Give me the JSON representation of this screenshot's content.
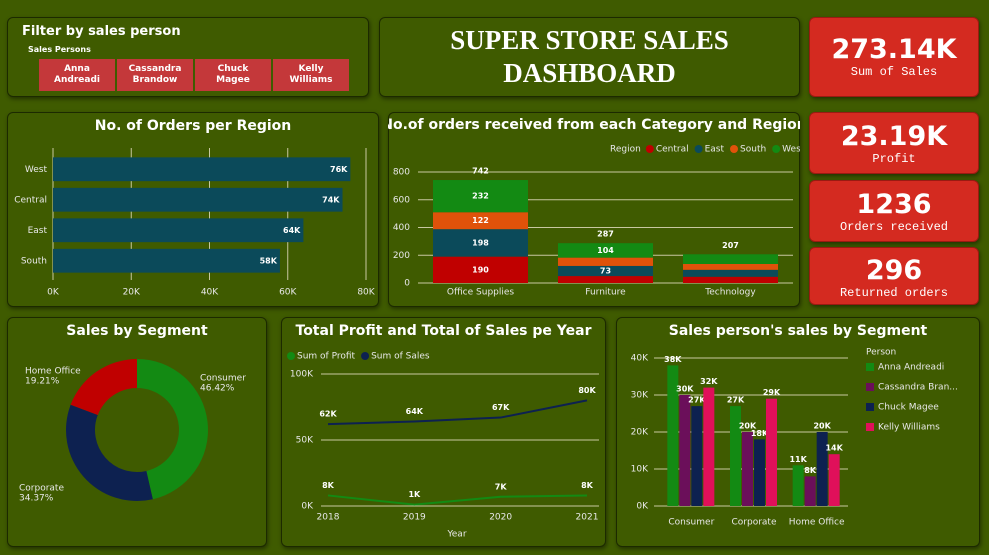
{
  "header": {
    "title": "SUPER STORE SALES DASHBOARD"
  },
  "filter": {
    "title": "Filter by sales person",
    "label": "Sales Persons",
    "options": [
      "Anna Andreadi",
      "Cassandra Brandow",
      "Chuck Magee",
      "Kelly Williams"
    ]
  },
  "kpis": [
    {
      "value": "273.14K",
      "label": "Sum of Sales"
    },
    {
      "value": "23.19K",
      "label": "Profit"
    },
    {
      "value": "1236",
      "label": "Orders received"
    },
    {
      "value": "296",
      "label": "Returned orders"
    }
  ],
  "chart_data": [
    {
      "type": "hbar",
      "title": "No. of Orders per  Region",
      "categories": [
        "West",
        "Central",
        "East",
        "South"
      ],
      "values": [
        76000,
        74000,
        64000,
        58000
      ],
      "value_labels": [
        "76K",
        "74K",
        "64K",
        "58K"
      ],
      "color": "#0b4a5a",
      "xlim": [
        0,
        80000
      ],
      "xticks": [
        {
          "value": 0,
          "label": "0K"
        },
        {
          "value": 20000,
          "label": "20K"
        },
        {
          "value": 40000,
          "label": "40K"
        },
        {
          "value": 60000,
          "label": "60K"
        },
        {
          "value": 80000,
          "label": "80K"
        }
      ],
      "grid": true
    },
    {
      "type": "stacked_bar",
      "title": "No.of orders received from each Category and Region",
      "legend_title": "Region",
      "categories": [
        "Office Supplies",
        "Furniture",
        "Technology"
      ],
      "series": [
        {
          "name": "Central",
          "color": "#c00000",
          "values": [
            190,
            50,
            45
          ],
          "value_labels": [
            "190",
            null,
            null
          ]
        },
        {
          "name": "East",
          "color": "#0b4a5a",
          "values": [
            198,
            73,
            50
          ],
          "value_labels": [
            "198",
            "73",
            null
          ]
        },
        {
          "name": "South",
          "color": "#e0520a",
          "values": [
            122,
            60,
            42
          ],
          "value_labels": [
            "122",
            null,
            null
          ]
        },
        {
          "name": "West",
          "color": "#138a13",
          "values": [
            232,
            104,
            70
          ],
          "value_labels": [
            "232",
            "104",
            null
          ]
        }
      ],
      "totals": [
        742,
        287,
        207
      ],
      "ylim": [
        0,
        800
      ],
      "yticks": [
        0,
        200,
        400,
        600,
        800
      ],
      "grid": true
    },
    {
      "type": "donut",
      "title": "Sales by Segment",
      "categories": [
        "Consumer",
        "Corporate",
        "Home Office"
      ],
      "values": [
        46.42,
        34.37,
        19.21
      ],
      "value_labels": [
        "46.42%",
        "34.37%",
        "19.21%"
      ],
      "colors": [
        "#138a13",
        "#0d2150",
        "#c00000"
      ]
    },
    {
      "type": "line",
      "title": "Total Profit and Total  of Sales pe Year",
      "x_label": "Year",
      "categories": [
        "2018",
        "2019",
        "2020",
        "2021"
      ],
      "series": [
        {
          "name": "Sum of Profit",
          "color": "#138a13",
          "values": [
            8000,
            1000,
            7000,
            8000
          ],
          "value_labels": [
            "8K",
            "1K",
            "7K",
            "8K"
          ]
        },
        {
          "name": "Sum of Sales",
          "color": "#0d2150",
          "values": [
            62000,
            64000,
            67000,
            80000
          ],
          "value_labels": [
            "62K",
            "64K",
            "67K",
            "80K"
          ]
        }
      ],
      "ylim": [
        0,
        100000
      ],
      "yticks": [
        {
          "value": 0,
          "label": "0K"
        },
        {
          "value": 50000,
          "label": "50K"
        },
        {
          "value": 100000,
          "label": "100K"
        }
      ],
      "grid": true
    },
    {
      "type": "grouped_bar",
      "title": "Sales person's sales  by Segment",
      "legend_title": "Person",
      "categories": [
        "Consumer",
        "Corporate",
        "Home Office"
      ],
      "series": [
        {
          "name": "Anna Andreadi",
          "color": "#138a13",
          "values": [
            38000,
            27000,
            11000
          ],
          "value_labels": [
            "38K",
            "27K",
            "11K"
          ]
        },
        {
          "name": "Cassandra Bran...",
          "color": "#6b0f5a",
          "values": [
            30000,
            20000,
            8000
          ],
          "value_labels": [
            "30K",
            "20K",
            "8K"
          ]
        },
        {
          "name": "Chuck Magee",
          "color": "#0d2150",
          "values": [
            27000,
            18000,
            20000
          ],
          "value_labels": [
            "27K",
            "18K",
            "20K"
          ]
        },
        {
          "name": "Kelly Williams",
          "color": "#e0105a",
          "values": [
            32000,
            29000,
            14000
          ],
          "value_labels": [
            "32K",
            "29K",
            "14K"
          ]
        }
      ],
      "ylim": [
        0,
        40000
      ],
      "yticks": [
        {
          "value": 0,
          "label": "0K"
        },
        {
          "value": 10000,
          "label": "10K"
        },
        {
          "value": 20000,
          "label": "20K"
        },
        {
          "value": 30000,
          "label": "30K"
        },
        {
          "value": 40000,
          "label": "40K"
        }
      ],
      "grid": true
    }
  ]
}
